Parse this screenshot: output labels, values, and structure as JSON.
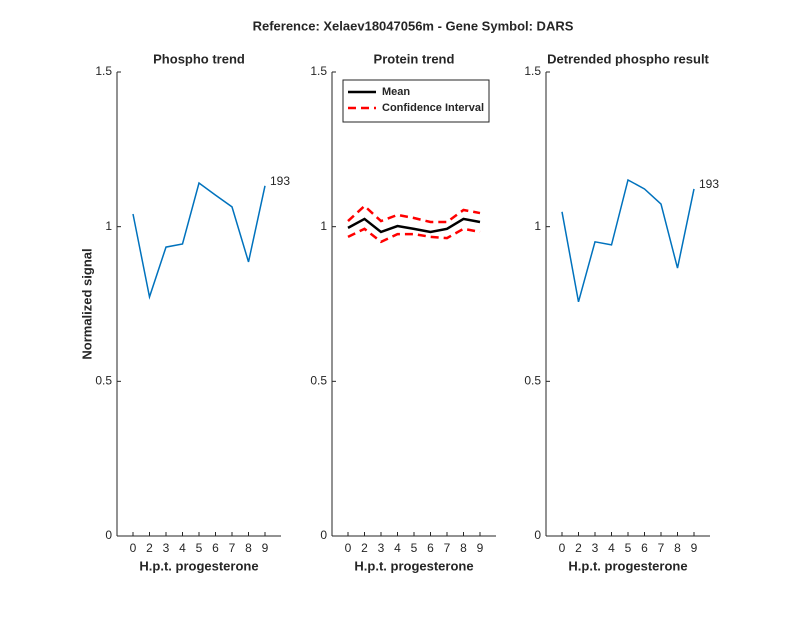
{
  "title": "Reference:  Xelaev18047056m - Gene Symbol:  DARS",
  "chart_data": [
    {
      "type": "line",
      "title": "Phospho trend",
      "xlabel": "H.p.t. progesterone",
      "ylabel": "Normalized signal",
      "categories": [
        "0",
        "2",
        "3",
        "4",
        "5",
        "6",
        "7",
        "8",
        "9"
      ],
      "series": [
        {
          "color": "#0072bd",
          "values": [
            1.041,
            0.773,
            0.934,
            0.944,
            1.141,
            1.102,
            1.064,
            0.886,
            1.132
          ]
        }
      ],
      "annotation": "193",
      "ylim": [
        0,
        1.5
      ],
      "yticks": [
        0,
        0.5,
        1,
        1.5
      ],
      "grid": false
    },
    {
      "type": "band-line",
      "title": "Protein trend",
      "xlabel": "H.p.t. progesterone",
      "categories": [
        "0",
        "2",
        "3",
        "4",
        "5",
        "6",
        "7",
        "8",
        "9"
      ],
      "series": [
        {
          "name": "Mean",
          "color": "#000000",
          "linestyle": "solid",
          "values": [
            0.996,
            1.025,
            0.983,
            1.002,
            0.993,
            0.983,
            0.993,
            1.025,
            1.015
          ]
        },
        {
          "name": "Confidence Interval",
          "color": "#ff0000",
          "linestyle": "dashed",
          "upper": [
            1.018,
            1.067,
            1.018,
            1.038,
            1.028,
            1.015,
            1.015,
            1.054,
            1.044
          ],
          "lower": [
            0.967,
            0.993,
            0.951,
            0.976,
            0.976,
            0.967,
            0.963,
            0.993,
            0.983
          ]
        }
      ],
      "legend": "northwest",
      "ylim": [
        0,
        1.5
      ],
      "yticks": [
        0,
        0.5,
        1,
        1.5
      ],
      "grid": false
    },
    {
      "type": "line",
      "title": "Detrended phospho result",
      "xlabel": "H.p.t. progesterone",
      "categories": [
        "0",
        "2",
        "3",
        "4",
        "5",
        "6",
        "7",
        "8",
        "9"
      ],
      "series": [
        {
          "color": "#0072bd",
          "values": [
            1.048,
            0.757,
            0.951,
            0.941,
            1.151,
            1.122,
            1.073,
            0.866,
            1.122
          ]
        }
      ],
      "annotation": "193",
      "ylim": [
        0,
        1.5
      ],
      "yticks": [
        0,
        0.5,
        1,
        1.5
      ],
      "grid": false
    }
  ]
}
